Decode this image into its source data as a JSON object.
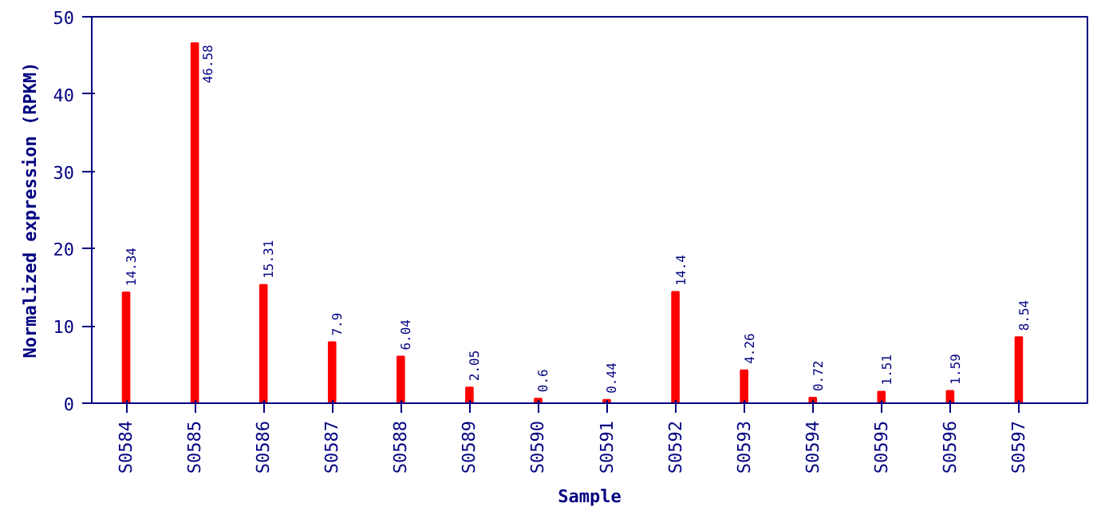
{
  "chart_data": {
    "type": "bar",
    "xlabel": "Sample",
    "ylabel": "Normalized expression (RPKM)",
    "categories": [
      "S0584",
      "S0585",
      "S0586",
      "S0587",
      "S0588",
      "S0589",
      "S0590",
      "S0591",
      "S0592",
      "S0593",
      "S0594",
      "S0595",
      "S0596",
      "S0597"
    ],
    "values": [
      14.34,
      46.58,
      15.31,
      7.9,
      6.04,
      2.05,
      0.6,
      0.44,
      14.4,
      4.26,
      0.72,
      1.51,
      1.59,
      8.54
    ],
    "color": "#ff0000",
    "ylim": [
      0,
      50
    ],
    "yticks": [
      0,
      10,
      20,
      30,
      40,
      50
    ],
    "grid": false,
    "data_labels": true
  }
}
